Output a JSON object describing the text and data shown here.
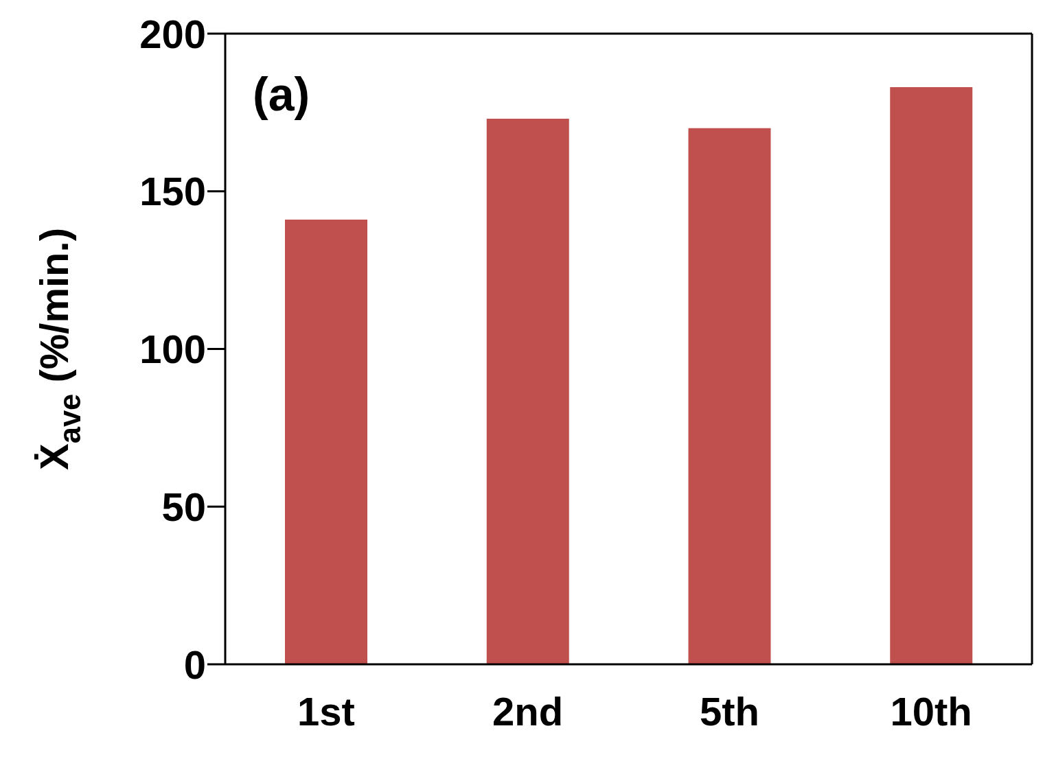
{
  "chart_data": {
    "type": "bar",
    "ylabel": "Ẋ$_{ave}$  (%/min.)",
    "annotations": [
      "(a)"
    ],
    "categories": [
      "1st",
      "2nd",
      "5th",
      "10th"
    ],
    "values": [
      141,
      173,
      170,
      183
    ],
    "color": "#c0504d",
    "ylim": [
      0,
      200
    ],
    "yticks": [
      0,
      50,
      100,
      150,
      200
    ],
    "grid": false,
    "legend": false
  }
}
